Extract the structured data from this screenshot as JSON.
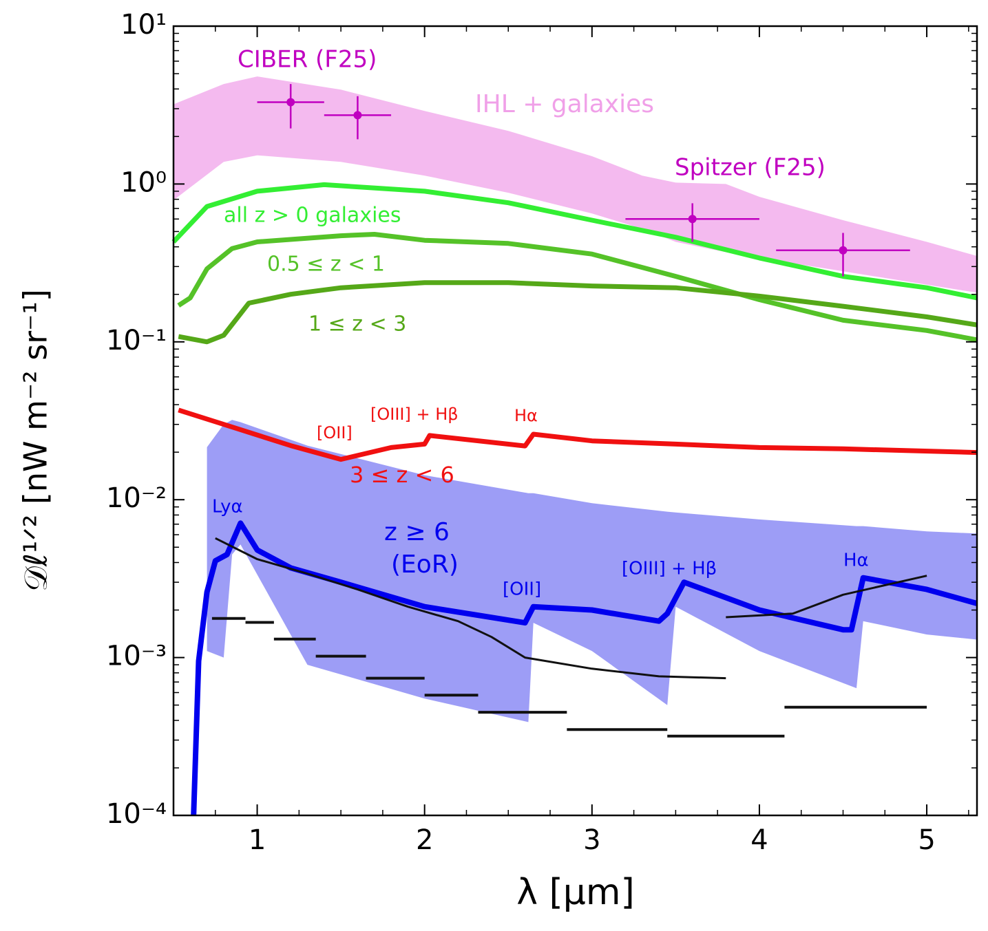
{
  "chart_data": {
    "type": "line",
    "xlabel": "λ [μm]",
    "ylabel": "𝒟ℓ¹ᐟ² [nW m⁻² sr⁻¹]",
    "xlim": [
      0.5,
      5.3
    ],
    "ylim": [
      0.0001,
      10
    ],
    "log_y": true,
    "xticks": [
      1,
      2,
      3,
      4,
      5
    ],
    "yticks": [
      {
        "value": 0.0001,
        "label": "10⁻⁴"
      },
      {
        "value": 0.001,
        "label": "10⁻³"
      },
      {
        "value": 0.01,
        "label": "10⁻²"
      },
      {
        "value": 0.1,
        "label": "10⁻¹"
      },
      {
        "value": 1,
        "label": "10⁰"
      },
      {
        "value": 10,
        "label": "10¹"
      }
    ],
    "areas": [
      {
        "name": "IHL + galaxies",
        "color": "#f3b6ee",
        "x": [
          0.5,
          0.8,
          1.0,
          1.5,
          2.0,
          2.5,
          3.0,
          3.3,
          3.5,
          3.8,
          4.0,
          4.5,
          5.0,
          5.3
        ],
        "upper": [
          3.2,
          4.3,
          4.8,
          3.96,
          2.9,
          2.17,
          1.5,
          1.13,
          1.02,
          1.0,
          0.83,
          0.59,
          0.43,
          0.35
        ],
        "lower": [
          0.79,
          1.38,
          1.52,
          1.38,
          1.13,
          0.88,
          0.65,
          0.52,
          0.43,
          0.37,
          0.34,
          0.28,
          0.23,
          0.205
        ]
      },
      {
        "color": "#8c8cf4",
        "x": [
          0.7,
          0.8,
          0.85,
          0.9,
          1.3,
          2.0,
          2.62,
          2.65,
          3.0,
          3.45,
          3.5,
          4.0,
          4.58,
          4.62,
          5.0,
          5.3
        ],
        "upper": [
          0.0215,
          0.03,
          0.032,
          0.031,
          0.022,
          0.0143,
          0.011,
          0.011,
          0.0095,
          0.0084,
          0.0083,
          0.0075,
          0.0068,
          0.0068,
          0.0063,
          0.0061
        ],
        "lower": [
          0.0011,
          0.001,
          0.0045,
          0.0052,
          0.0009,
          0.00055,
          0.00039,
          0.00166,
          0.0011,
          0.0005,
          0.0021,
          0.0011,
          0.00064,
          0.0017,
          0.0014,
          0.0013
        ]
      }
    ],
    "series": [
      {
        "name": "all z > 0 galaxies",
        "color": "#33ee33",
        "x": [
          0.5,
          0.7,
          1.0,
          1.4,
          2.0,
          2.5,
          3.0,
          3.5,
          4.0,
          4.5,
          5.0,
          5.3
        ],
        "values": [
          0.43,
          0.72,
          0.9,
          0.99,
          0.9,
          0.76,
          0.59,
          0.46,
          0.34,
          0.26,
          0.22,
          0.19
        ]
      },
      {
        "name": "0.5 ≤ z < 1",
        "color": "#55c228",
        "x": [
          0.53,
          0.6,
          0.7,
          0.85,
          1.0,
          1.5,
          1.7,
          2.0,
          2.5,
          3.0,
          3.5,
          4.0,
          4.5,
          5.0,
          5.3
        ],
        "values": [
          0.17,
          0.19,
          0.29,
          0.39,
          0.43,
          0.47,
          0.48,
          0.44,
          0.42,
          0.36,
          0.26,
          0.185,
          0.137,
          0.118,
          0.103
        ]
      },
      {
        "name": "1 ≤ z < 3",
        "color": "#55a818",
        "x": [
          0.53,
          0.7,
          0.8,
          0.95,
          1.2,
          1.5,
          2.0,
          2.5,
          3.0,
          3.5,
          4.0,
          4.5,
          5.0,
          5.3
        ],
        "values": [
          0.108,
          0.1,
          0.11,
          0.176,
          0.2,
          0.22,
          0.237,
          0.237,
          0.226,
          0.22,
          0.195,
          0.168,
          0.144,
          0.128
        ]
      },
      {
        "name": "3 ≤ z < 6",
        "color": "#f01010",
        "x": [
          0.53,
          0.8,
          1.2,
          1.5,
          1.8,
          2.0,
          2.03,
          2.6,
          2.65,
          3.0,
          3.5,
          4.0,
          4.5,
          5.3
        ],
        "values": [
          0.037,
          0.03,
          0.022,
          0.018,
          0.0214,
          0.0225,
          0.0255,
          0.0219,
          0.026,
          0.0236,
          0.0225,
          0.0214,
          0.021,
          0.0199
        ]
      },
      {
        "color": "#0000ee",
        "x": [
          0.62,
          0.65,
          0.7,
          0.75,
          0.82,
          0.9,
          1.0,
          1.2,
          1.5,
          2.0,
          2.6,
          2.65,
          3.0,
          3.4,
          3.45,
          3.55,
          4.0,
          4.5,
          4.55,
          4.62,
          5.0,
          5.3
        ],
        "values": [
          0.0001,
          0.00095,
          0.0026,
          0.0041,
          0.0045,
          0.0071,
          0.0048,
          0.0037,
          0.003,
          0.0021,
          0.00166,
          0.0021,
          0.002,
          0.0017,
          0.0019,
          0.003,
          0.002,
          0.0015,
          0.0015,
          0.0032,
          0.0027,
          0.0022
        ]
      },
      {
        "color": "#111111",
        "x": [
          0.75,
          1.0,
          1.3,
          1.6,
          1.9,
          2.2,
          2.4,
          2.6,
          3.0,
          3.4,
          3.8,
          null,
          3.8,
          4.2,
          4.5,
          5.0
        ],
        "values": [
          0.0057,
          0.0042,
          0.0034,
          0.0027,
          0.0021,
          0.0017,
          0.00135,
          0.001,
          0.00085,
          0.00076,
          0.00074,
          null,
          0.0018,
          0.0019,
          0.0025,
          0.0033
        ]
      }
    ],
    "steps": [
      {
        "color": "#111111",
        "bins": [
          0.73,
          0.93,
          1.1,
          1.35,
          1.65,
          2.0,
          2.32,
          2.85,
          3.45,
          4.15,
          5.0
        ],
        "values": [
          0.00177,
          0.00167,
          0.00131,
          0.00102,
          0.00074,
          0.000578,
          0.00045,
          0.00035,
          0.000318,
          0.000485
        ]
      }
    ],
    "errorbars": [
      {
        "name": "CIBER (F25)",
        "color": "#c000c0",
        "x": [
          1.2,
          1.6
        ],
        "values": [
          3.3,
          2.73
        ],
        "xerr": [
          0.2,
          0.2
        ],
        "ylow": [
          2.25,
          1.92
        ],
        "yhigh": [
          4.3,
          3.6
        ]
      },
      {
        "name": "Spitzer (F25)",
        "color": "#c000c0",
        "x": [
          3.6,
          4.5
        ],
        "values": [
          0.6,
          0.38
        ],
        "xerr": [
          0.4,
          0.4
        ],
        "ylow": [
          0.43,
          0.26
        ],
        "yhigh": [
          0.755,
          0.49
        ]
      }
    ],
    "annotations": [
      {
        "text": "[OII]",
        "color": "#f01010"
      },
      {
        "text": "[OIII] + Hβ",
        "color": "#f01010"
      },
      {
        "text": "Hα",
        "color": "#f01010"
      },
      {
        "text": "Lyα",
        "color": "#0000ee"
      },
      {
        "text": "z ≥ 6",
        "color": "#0000ee"
      },
      {
        "text": "(EoR)",
        "color": "#0000ee"
      },
      {
        "text": "[OII]",
        "color": "#0000ee"
      },
      {
        "text": "[OIII] + Hβ",
        "color": "#0000ee"
      },
      {
        "text": "Hα",
        "color": "#0000ee"
      }
    ]
  }
}
